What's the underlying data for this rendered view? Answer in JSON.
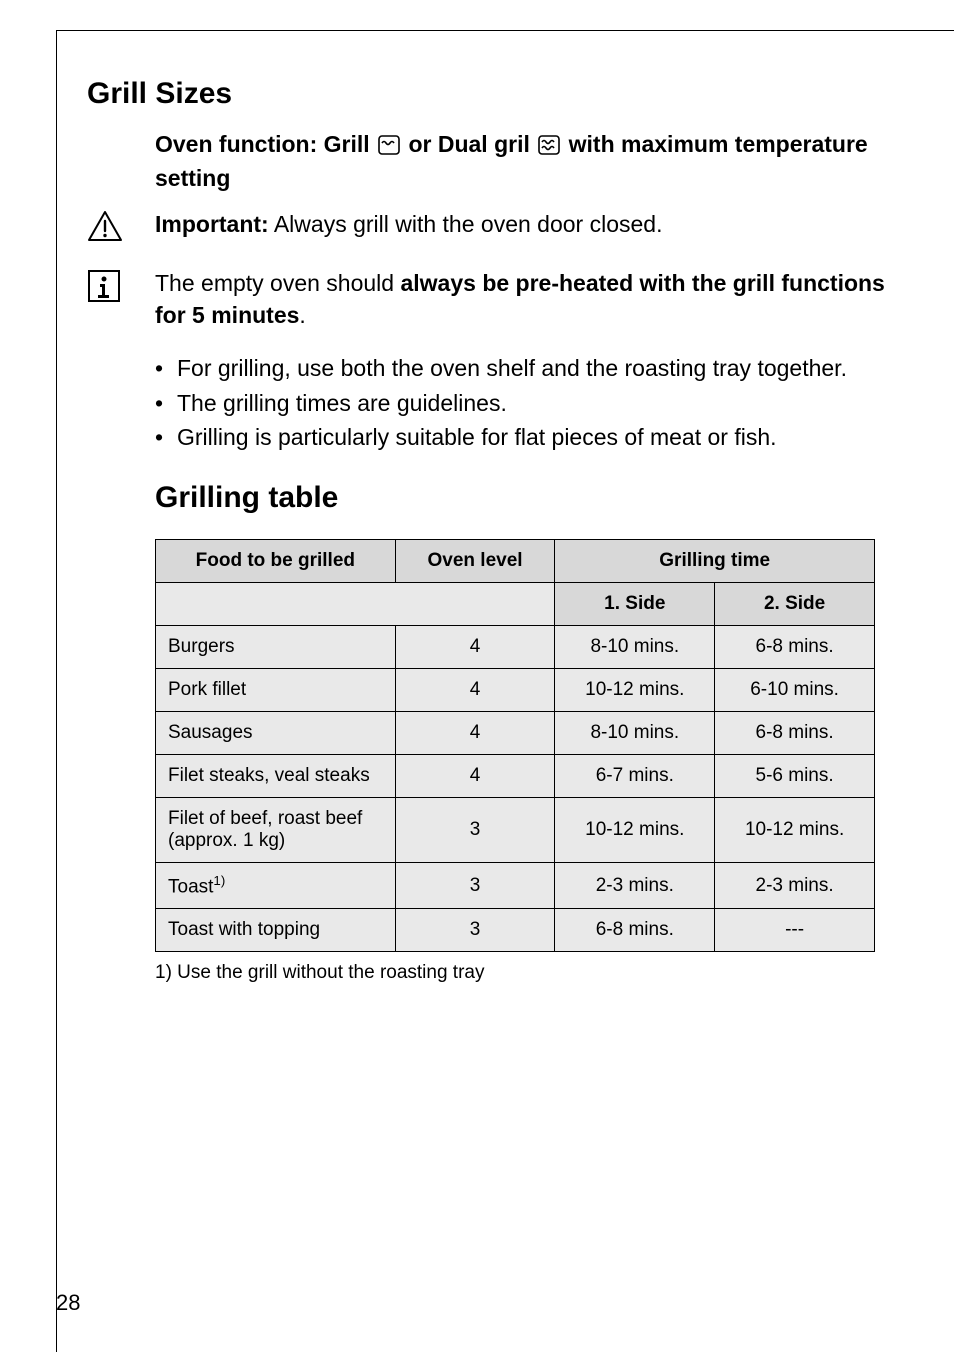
{
  "page": {
    "number": "28",
    "section_title": "Grill Sizes",
    "subsection_title": "Grilling table"
  },
  "intro": {
    "oven_function_prefix": "Oven function: Grill ",
    "oven_function_mid": " or Dual gril ",
    "oven_function_suffix": " with maximum temperature setting",
    "important_label": "Important:",
    "important_text": " Always grill with the oven door closed.",
    "preheat_prefix": "The empty oven should ",
    "preheat_bold": "always be pre-heated with the grill functions for 5 minutes",
    "preheat_suffix": "."
  },
  "bullets": [
    "For grilling, use both the oven shelf and the roasting tray together.",
    "The grilling times are guidelines.",
    "Grilling is particularly suitable for flat pieces of meat or fish."
  ],
  "table": {
    "headers": {
      "food": "Food to be grilled",
      "level": "Oven level",
      "time": "Grilling time",
      "side1": "1. Side",
      "side2": "2. Side"
    },
    "rows": [
      {
        "food": "Burgers",
        "level": "4",
        "side1": "8-10 mins.",
        "side2": "6-8 mins."
      },
      {
        "food": "Pork fillet",
        "level": "4",
        "side1": "10-12 mins.",
        "side2": "6-10 mins."
      },
      {
        "food": "Sausages",
        "level": "4",
        "side1": "8-10 mins.",
        "side2": "6-8 mins."
      },
      {
        "food": "Filet steaks, veal steaks",
        "level": "4",
        "side1": "6-7 mins.",
        "side2": "5-6 mins."
      },
      {
        "food": "Filet of beef, roast beef (approx. 1 kg)",
        "level": "3",
        "side1": "10-12 mins.",
        "side2": "10-12 mins."
      },
      {
        "food_html": "Toast<span class=\"sup\">1)</span>",
        "food": "Toast",
        "level": "3",
        "side1": "2-3 mins.",
        "side2": "2-3 mins."
      },
      {
        "food": "Toast with topping",
        "level": "3",
        "side1": "6-8 mins.",
        "side2": "---"
      }
    ],
    "footnote": "1) Use the grill without the roasting tray"
  },
  "styling": {
    "colors": {
      "page_bg": "#ffffff",
      "text": "#000000",
      "rule": "#000000",
      "table_header_bg": "#d8d8d8",
      "table_body_bg": "#e9e9e9",
      "table_border": "#000000"
    },
    "fonts": {
      "body_pt": 17,
      "title_pt": 22,
      "table_pt": 14,
      "family": "Helvetica"
    }
  },
  "icons": {
    "warning": "warning-triangle",
    "info": "info-box",
    "grill_single": "grill-single",
    "grill_dual": "grill-dual"
  }
}
